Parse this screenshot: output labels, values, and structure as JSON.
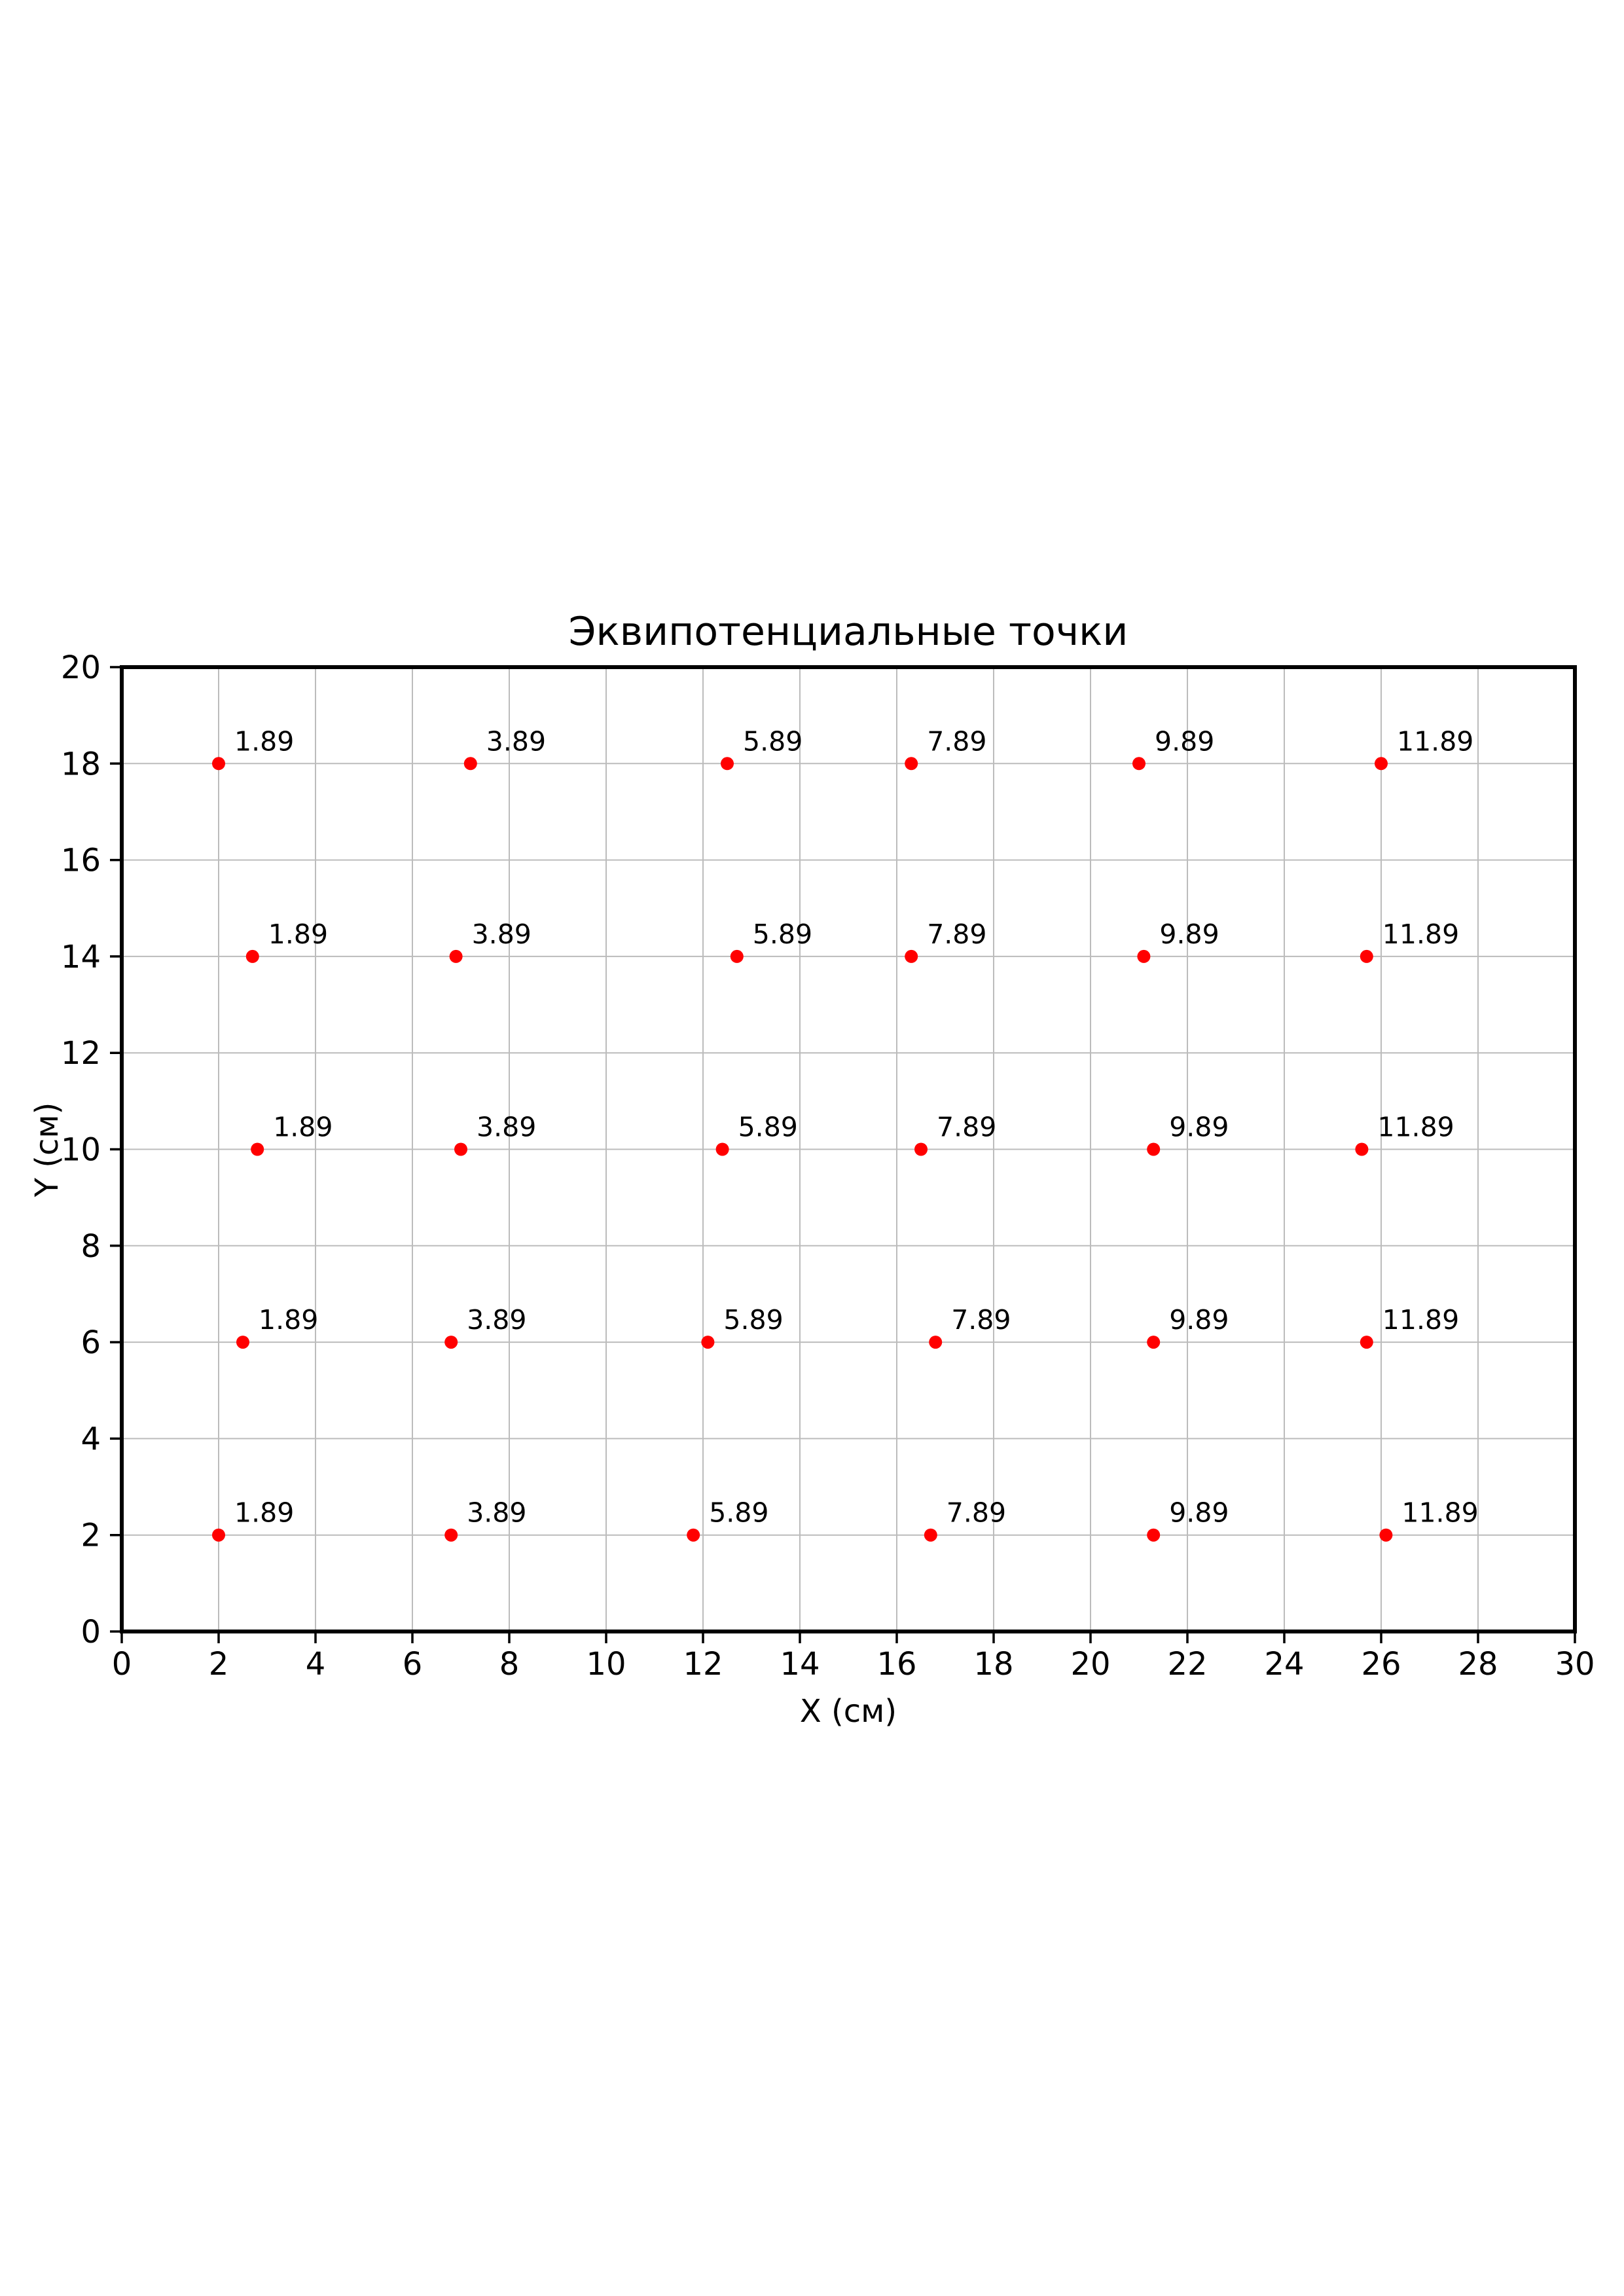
{
  "chart": {
    "title": "Эквипотенциальные точки",
    "xlabel": "X (см)",
    "ylabel": "Y (см)"
  },
  "chart_data": {
    "type": "scatter",
    "title": "Эквипотенциальные точки",
    "xlabel": "X (см)",
    "ylabel": "Y (см)",
    "xlim": [
      0,
      30
    ],
    "ylim": [
      0,
      20
    ],
    "xticks": [
      0,
      2,
      4,
      6,
      8,
      10,
      12,
      14,
      16,
      18,
      20,
      22,
      24,
      26,
      28,
      30
    ],
    "yticks": [
      0,
      2,
      4,
      6,
      8,
      10,
      12,
      14,
      16,
      18,
      20
    ],
    "grid": true,
    "legend_position": "none",
    "marker_shape": "circle",
    "marker_color": "#ff0000",
    "annotation_color": "#000000",
    "grid_color": "#bcbcbc",
    "spine_color": "#000000",
    "points": [
      {
        "x": 2.0,
        "y": 18,
        "label": "1.89"
      },
      {
        "x": 7.2,
        "y": 18,
        "label": "3.89"
      },
      {
        "x": 12.5,
        "y": 18,
        "label": "5.89"
      },
      {
        "x": 16.3,
        "y": 18,
        "label": "7.89"
      },
      {
        "x": 21.0,
        "y": 18,
        "label": "9.89"
      },
      {
        "x": 26.0,
        "y": 18,
        "label": "11.89"
      },
      {
        "x": 2.7,
        "y": 14,
        "label": "1.89"
      },
      {
        "x": 6.9,
        "y": 14,
        "label": "3.89"
      },
      {
        "x": 12.7,
        "y": 14,
        "label": "5.89"
      },
      {
        "x": 16.3,
        "y": 14,
        "label": "7.89"
      },
      {
        "x": 21.1,
        "y": 14,
        "label": "9.89"
      },
      {
        "x": 25.7,
        "y": 14,
        "label": "11.89"
      },
      {
        "x": 2.8,
        "y": 10,
        "label": "1.89"
      },
      {
        "x": 7.0,
        "y": 10,
        "label": "3.89"
      },
      {
        "x": 12.4,
        "y": 10,
        "label": "5.89"
      },
      {
        "x": 16.5,
        "y": 10,
        "label": "7.89"
      },
      {
        "x": 21.3,
        "y": 10,
        "label": "9.89"
      },
      {
        "x": 25.6,
        "y": 10,
        "label": "11.89"
      },
      {
        "x": 2.5,
        "y": 6,
        "label": "1.89"
      },
      {
        "x": 6.8,
        "y": 6,
        "label": "3.89"
      },
      {
        "x": 12.1,
        "y": 6,
        "label": "5.89"
      },
      {
        "x": 16.8,
        "y": 6,
        "label": "7.89"
      },
      {
        "x": 21.3,
        "y": 6,
        "label": "9.89"
      },
      {
        "x": 25.7,
        "y": 6,
        "label": "11.89"
      },
      {
        "x": 2.0,
        "y": 2,
        "label": "1.89"
      },
      {
        "x": 6.8,
        "y": 2,
        "label": "3.89"
      },
      {
        "x": 11.8,
        "y": 2,
        "label": "5.89"
      },
      {
        "x": 16.7,
        "y": 2,
        "label": "7.89"
      },
      {
        "x": 21.3,
        "y": 2,
        "label": "9.89"
      },
      {
        "x": 26.1,
        "y": 2,
        "label": "11.89"
      }
    ]
  }
}
